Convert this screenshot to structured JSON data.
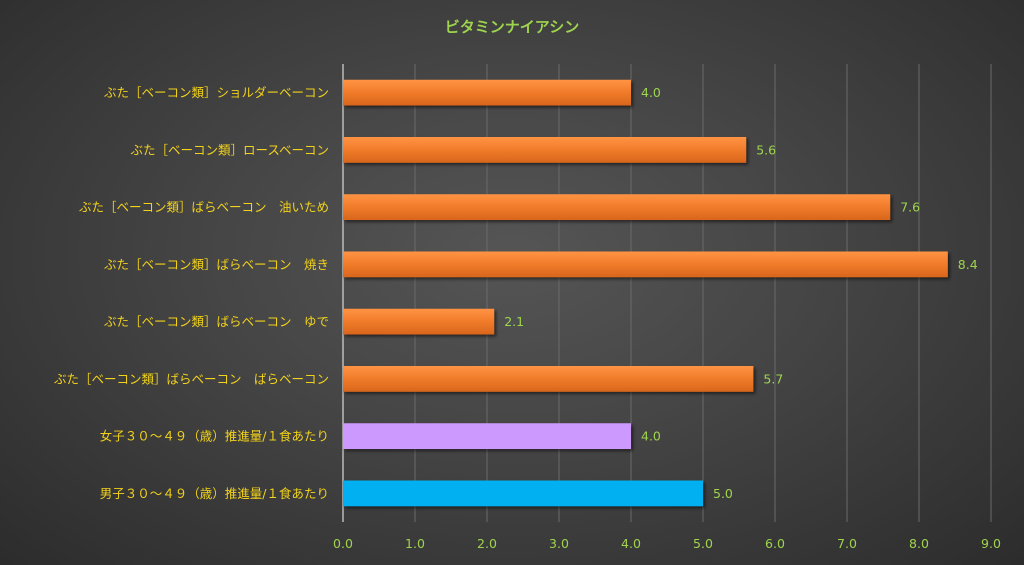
{
  "chart_data": {
    "type": "bar",
    "orientation": "horizontal",
    "title": "ビタミンナイアシン",
    "categories": [
      "ぶた［ベーコン類］ショルダーベーコン",
      "ぶた［ベーコン類］ロースベーコン",
      "ぶた［ベーコン類］ばらベーコン　油いため",
      "ぶた［ベーコン類］ばらベーコン　焼き",
      "ぶた［ベーコン類］ばらベーコン　ゆで",
      "ぶた［ベーコン類］ばらベーコン　ばらベーコン",
      "女子３０～４９（歳）推進量/１食あたり",
      "男子３０～４９（歳）推進量/１食あたり"
    ],
    "values": [
      4.0,
      5.6,
      7.6,
      8.4,
      2.1,
      5.7,
      4.0,
      5.0
    ],
    "value_labels": [
      "4.0",
      "5.6",
      "7.6",
      "8.4",
      "2.1",
      "5.7",
      "4.0",
      "5.0"
    ],
    "bar_colors": [
      "#f07b2a",
      "#f07b2a",
      "#f07b2a",
      "#f07b2a",
      "#f07b2a",
      "#f07b2a",
      "#cc99ff",
      "#00b0f0"
    ],
    "xlim": [
      0,
      9
    ],
    "xticks": [
      "0.0",
      "1.0",
      "2.0",
      "3.0",
      "4.0",
      "5.0",
      "6.0",
      "7.0",
      "8.0",
      "9.0"
    ],
    "grid": true,
    "legend": "none",
    "colors": {
      "title": "#9ed44e",
      "category_text": "#f2d21a",
      "tick_text": "#9ed44e",
      "gridline": "#6a6a6a"
    }
  }
}
